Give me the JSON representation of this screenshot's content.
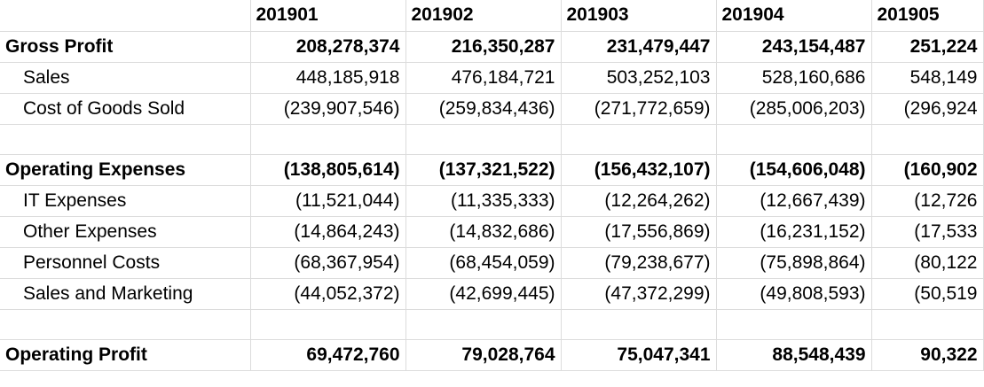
{
  "columns": [
    "201901",
    "201902",
    "201903",
    "201904",
    "201905"
  ],
  "rows": {
    "gross_profit": {
      "label": "Gross Profit",
      "values": [
        "208,278,374",
        "216,350,287",
        "231,479,447",
        "243,154,487",
        "251,224"
      ]
    },
    "sales": {
      "label": "Sales",
      "values": [
        "448,185,918",
        "476,184,721",
        "503,252,103",
        "528,160,686",
        "548,149"
      ]
    },
    "cogs": {
      "label": "Cost of Goods Sold",
      "values": [
        "(239,907,546)",
        "(259,834,436)",
        "(271,772,659)",
        "(285,006,203)",
        "(296,924"
      ]
    },
    "operating_expenses": {
      "label": "Operating Expenses",
      "values": [
        "(138,805,614)",
        "(137,321,522)",
        "(156,432,107)",
        "(154,606,048)",
        "(160,902"
      ]
    },
    "it_expenses": {
      "label": "IT Expenses",
      "values": [
        "(11,521,044)",
        "(11,335,333)",
        "(12,264,262)",
        "(12,667,439)",
        "(12,726"
      ]
    },
    "other_expenses": {
      "label": "Other Expenses",
      "values": [
        "(14,864,243)",
        "(14,832,686)",
        "(17,556,869)",
        "(16,231,152)",
        "(17,533"
      ]
    },
    "personnel_costs": {
      "label": "Personnel Costs",
      "values": [
        "(68,367,954)",
        "(68,454,059)",
        "(79,238,677)",
        "(75,898,864)",
        "(80,122"
      ]
    },
    "sales_marketing": {
      "label": "Sales and Marketing",
      "values": [
        "(44,052,372)",
        "(42,699,445)",
        "(47,372,299)",
        "(49,808,593)",
        "(50,519"
      ]
    },
    "operating_profit": {
      "label": "Operating Profit",
      "values": [
        "69,472,760",
        "79,028,764",
        "75,047,341",
        "88,548,439",
        "90,322"
      ]
    }
  }
}
